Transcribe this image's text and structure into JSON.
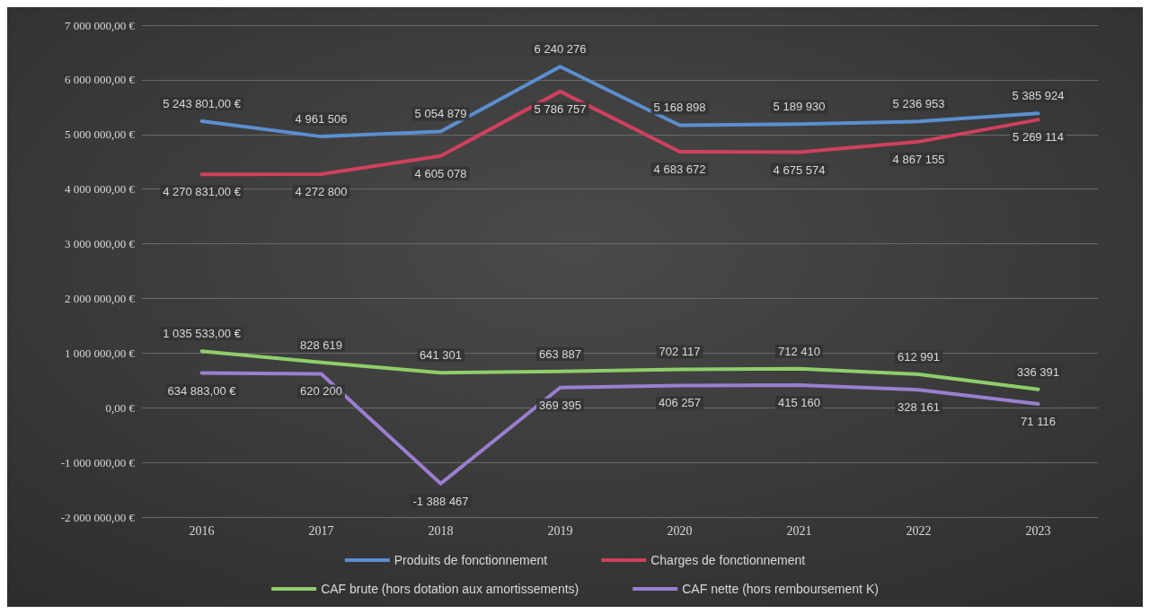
{
  "chart_data": {
    "type": "line",
    "categories": [
      "2016",
      "2017",
      "2018",
      "2019",
      "2020",
      "2021",
      "2022",
      "2023"
    ],
    "series": [
      {
        "name": "Produits de fonctionnement",
        "color": "#5b8fd0",
        "values": [
          5243801,
          4961506,
          5054879,
          6240276,
          5168898,
          5189930,
          5236953,
          5385924
        ],
        "value_labels": [
          "5 243 801,00 €",
          "4 961 506",
          "5 054 879",
          "6 240 276",
          "5 168 898",
          "5 189 930",
          "5 236 953",
          "5 385 924"
        ]
      },
      {
        "name": "Charges de fonctionnement",
        "color": "#d0405e",
        "values": [
          4270831,
          4272800,
          4605078,
          5786757,
          4683672,
          4675574,
          4867155,
          5269114
        ],
        "value_labels": [
          "4 270 831,00 €",
          "4 272 800",
          "4 605 078",
          "5 786 757",
          "4 683 672",
          "4 675 574",
          "4 867 155",
          "5 269 114"
        ]
      },
      {
        "name": "CAF brute (hors dotation aux amortissements)",
        "color": "#8fce6a",
        "values": [
          1035533,
          828619,
          641301,
          663887,
          702117,
          712410,
          612991,
          336391
        ],
        "value_labels": [
          "1 035 533,00 €",
          "828 619",
          "641 301",
          "663 887",
          "702 117",
          "712 410",
          "612 991",
          "336 391"
        ]
      },
      {
        "name": "CAF nette (hors remboursement K)",
        "color": "#9a7fd0",
        "values": [
          634883,
          620200,
          -1388467,
          369395,
          406257,
          415160,
          328161,
          71116
        ],
        "value_labels": [
          "634 883,00 €",
          "620 200",
          "-1 388 467",
          "369 395",
          "406 257",
          "415 160",
          "328 161",
          "71 116"
        ]
      }
    ],
    "ylim": [
      -2000000,
      7000000
    ],
    "yticks": [
      {
        "value": -2000000,
        "label": "-2 000 000,00 €"
      },
      {
        "value": -1000000,
        "label": "-1 000 000,00 €"
      },
      {
        "value": 0,
        "label": "0,00 €"
      },
      {
        "value": 1000000,
        "label": "1 000 000,00 €"
      },
      {
        "value": 2000000,
        "label": "2 000 000,00 €"
      },
      {
        "value": 3000000,
        "label": "3 000 000,00 €"
      },
      {
        "value": 4000000,
        "label": "4 000 000,00 €"
      },
      {
        "value": 5000000,
        "label": "5 000 000,00 €"
      },
      {
        "value": 6000000,
        "label": "6 000 000,00 €"
      },
      {
        "value": 7000000,
        "label": "7 000 000,00 €"
      }
    ],
    "grid": "y",
    "legend": "bottom",
    "marker": "none",
    "line_style": "solid"
  }
}
